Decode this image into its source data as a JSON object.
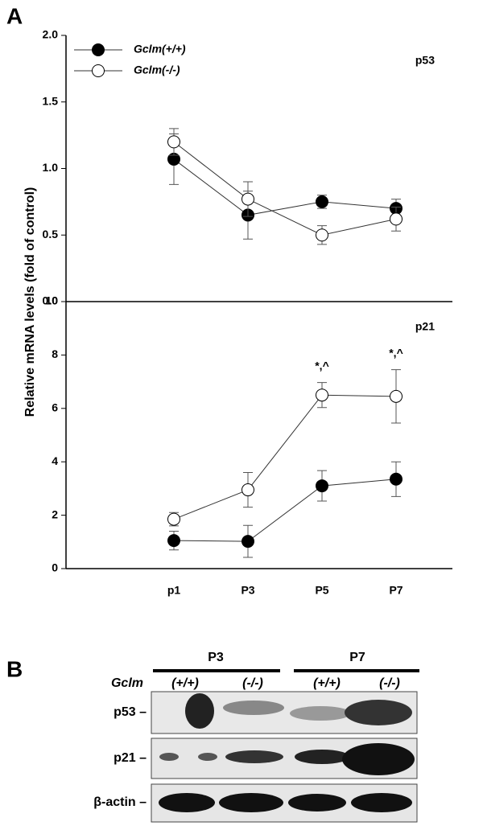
{
  "panel_labels": [
    "A",
    "B"
  ],
  "chart_data": [
    {
      "type": "line",
      "panel_title": "p53",
      "ylabel": "Relative mRNA levels (fold of control)",
      "ylim": [
        0,
        2
      ],
      "yticks": [
        {
          "value": 0,
          "label": "0.0"
        },
        0.5,
        {
          "value": 1,
          "label": "1.0"
        },
        1.5,
        {
          "value": 2,
          "label": "2.0"
        }
      ],
      "legend": "upper left",
      "series": [
        {
          "name": "Gclm(+/+)",
          "color": "#000000",
          "values": [
            1.07,
            0.65,
            0.75,
            0.7
          ],
          "errors": [
            0.19,
            0.18,
            0.05,
            0.07
          ]
        },
        {
          "name": "Gclm(-/-)",
          "color": "#ffffff",
          "values": [
            1.2,
            0.77,
            0.5,
            0.62
          ],
          "errors": [
            0.1,
            0.13,
            0.07,
            0.09
          ]
        }
      ]
    },
    {
      "type": "line",
      "panel_title": "p21",
      "categories": [
        "p1",
        "P3",
        "P5",
        "P7"
      ],
      "ylim": [
        0,
        10
      ],
      "yticks": [
        0,
        2,
        4,
        6,
        8,
        10
      ],
      "series": [
        {
          "color": "#000000",
          "values": [
            1.05,
            1.02,
            3.1,
            3.35
          ],
          "errors": [
            0.35,
            0.6,
            0.57,
            0.65
          ]
        },
        {
          "color": "#ffffff",
          "values": [
            1.85,
            2.95,
            6.5,
            6.45
          ],
          "errors": [
            0.25,
            0.65,
            0.47,
            1.0
          ]
        }
      ],
      "annotations": [
        {
          "text": "*,^",
          "x": "P5"
        },
        {
          "text": "*,^",
          "x": "P7"
        }
      ]
    }
  ],
  "blot": {
    "groups": [
      "P3",
      "P7"
    ],
    "genotype_label": "Gclm",
    "genotypes": [
      "(+/+)",
      "(-/-)",
      "(+/+)",
      "(-/-)"
    ],
    "rows": [
      "p53 –",
      "p21 –",
      "β-actin –"
    ]
  }
}
